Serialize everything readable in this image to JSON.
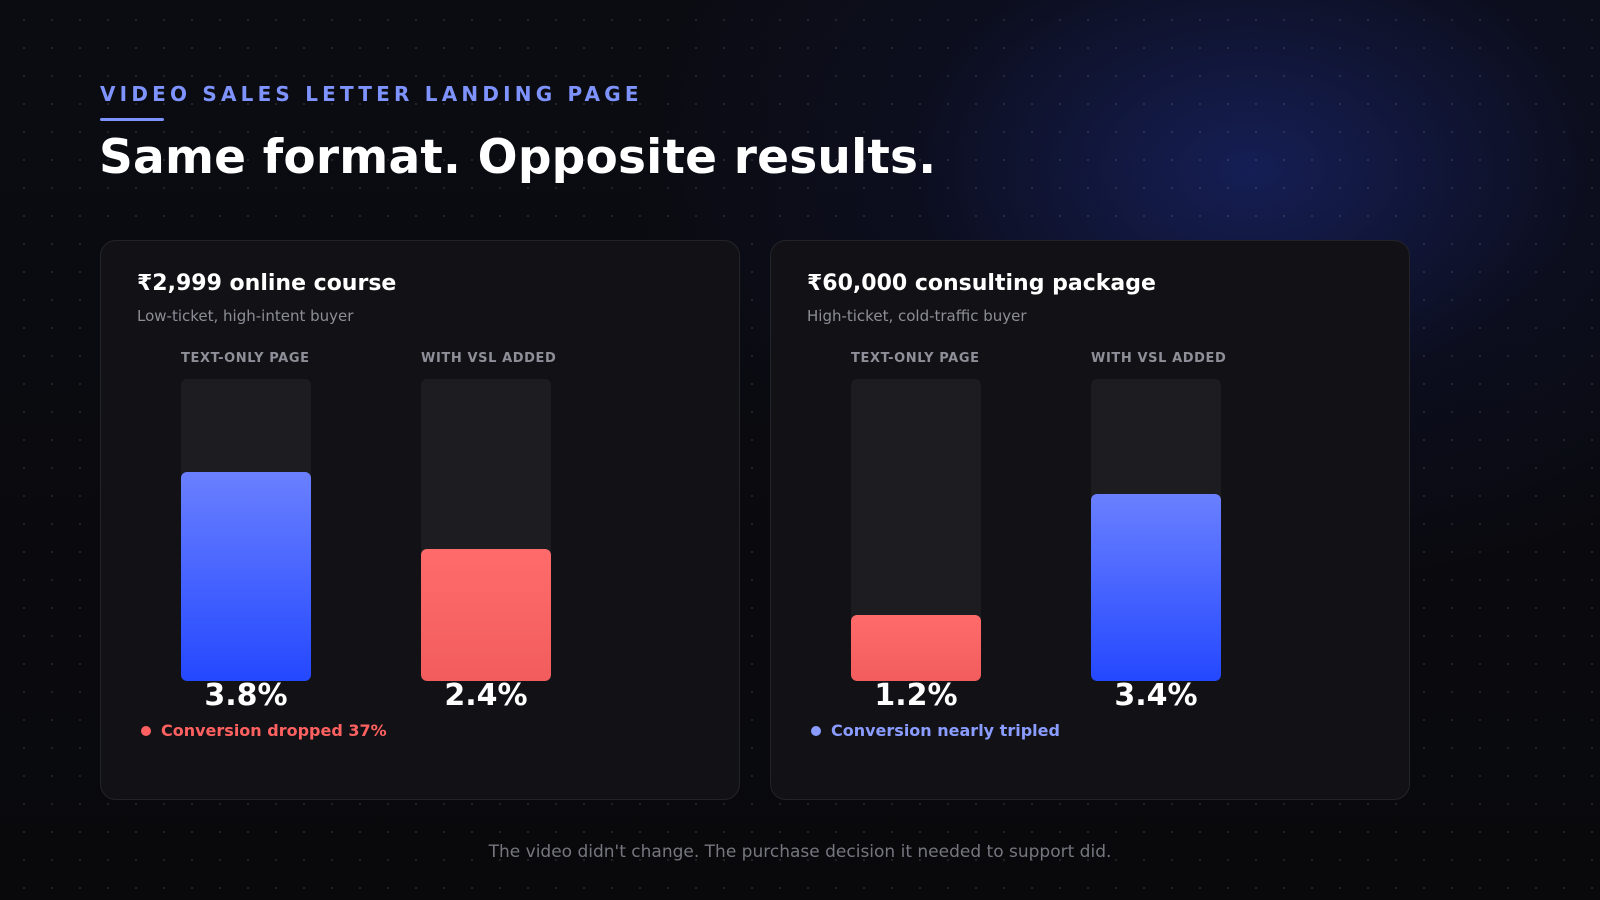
{
  "eyebrow": "VIDEO SALES LETTER LANDING PAGE",
  "headline": "Same format. Opposite results.",
  "footer": "The video didn't change. The purchase decision it needed to support did.",
  "colors": {
    "accent": "#7f93ff",
    "increase": "#2448ff",
    "decrease": "#ff6161"
  },
  "cards": [
    {
      "title": "₹2,999 online course",
      "subtitle": "Low-ticket, high-intent buyer",
      "note": "Conversion dropped 37%",
      "note_tone": "red"
    },
    {
      "title": "₹60,000 consulting package",
      "subtitle": "High-ticket, cold-traffic buyer",
      "note": "Conversion nearly tripled",
      "note_tone": "blue"
    }
  ],
  "chart_data": [
    {
      "type": "bar",
      "title": "₹2,999 online course",
      "subtitle": "Low-ticket, high-intent buyer",
      "categories": [
        "TEXT-ONLY PAGE",
        "WITH VSL ADDED"
      ],
      "values": [
        3.8,
        2.4
      ],
      "value_labels": [
        "3.8%",
        "2.4%"
      ],
      "bar_colors": [
        "blue",
        "red"
      ],
      "ylim": [
        0,
        5.5
      ],
      "grid": false
    },
    {
      "type": "bar",
      "title": "₹60,000 consulting package",
      "subtitle": "High-ticket, cold-traffic buyer",
      "categories": [
        "TEXT-ONLY PAGE",
        "WITH VSL ADDED"
      ],
      "values": [
        1.2,
        3.4
      ],
      "value_labels": [
        "1.2%",
        "3.4%"
      ],
      "bar_colors": [
        "red",
        "blue"
      ],
      "ylim": [
        0,
        5.5
      ],
      "grid": false
    }
  ]
}
